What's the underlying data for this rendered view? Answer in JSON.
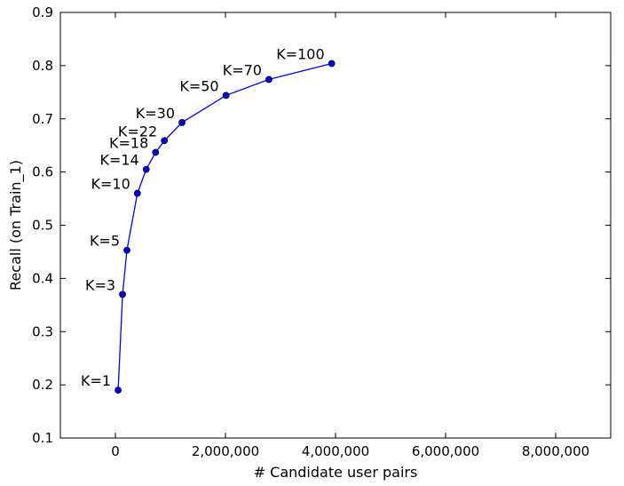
{
  "chart_data": {
    "type": "line",
    "title": "",
    "xlabel": "# Candidate user pairs",
    "ylabel": "Recall (on Train_1)",
    "xlim": [
      -1000000,
      9000000
    ],
    "ylim": [
      0.1,
      0.9
    ],
    "x_ticks": [
      0,
      2000000,
      4000000,
      6000000,
      8000000
    ],
    "x_tick_labels": [
      "0",
      "2,000,000",
      "4,000,000",
      "6,000,000",
      "8,000,000"
    ],
    "y_ticks": [
      0.1,
      0.2,
      0.3,
      0.4,
      0.5,
      0.6,
      0.7,
      0.8,
      0.9
    ],
    "y_tick_labels": [
      "0.1",
      "0.2",
      "0.3",
      "0.4",
      "0.5",
      "0.6",
      "0.7",
      "0.8",
      "0.9"
    ],
    "grid": false,
    "legend": "none",
    "series": [
      {
        "color": "#0000ff",
        "marker_color": "#0000cc",
        "points": [
          {
            "x": 50000,
            "y": 0.19,
            "label": "K=1"
          },
          {
            "x": 130000,
            "y": 0.37,
            "label": "K=3"
          },
          {
            "x": 210000,
            "y": 0.453,
            "label": "K=5"
          },
          {
            "x": 400000,
            "y": 0.56,
            "label": "K=10"
          },
          {
            "x": 560000,
            "y": 0.605,
            "label": "K=14"
          },
          {
            "x": 730000,
            "y": 0.637,
            "label": "K=18"
          },
          {
            "x": 890000,
            "y": 0.659,
            "label": "K=22"
          },
          {
            "x": 1210000,
            "y": 0.693,
            "label": "K=30"
          },
          {
            "x": 2010000,
            "y": 0.744,
            "label": "K=50"
          },
          {
            "x": 2790000,
            "y": 0.774,
            "label": "K=70"
          },
          {
            "x": 3930000,
            "y": 0.804,
            "label": "K=100"
          }
        ]
      }
    ]
  }
}
